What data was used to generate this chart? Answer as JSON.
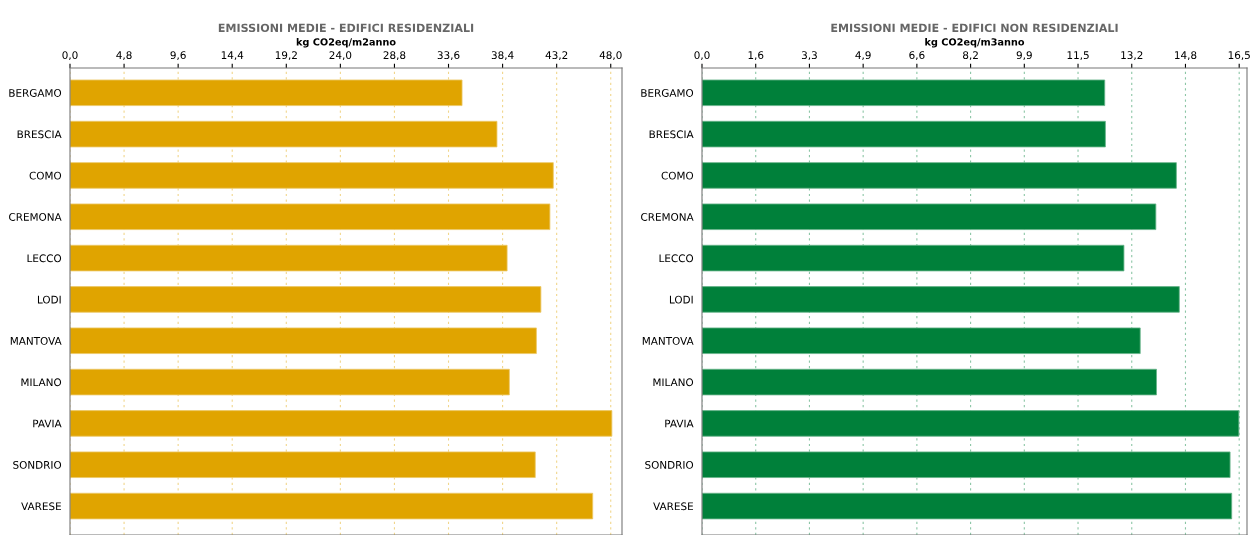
{
  "chart_data": [
    {
      "type": "bar",
      "orientation": "horizontal",
      "title": "EMISSIONI MEDIE - EDIFICI RESIDENZIALI",
      "xlabel": "kg CO2eq/m2anno",
      "categories": [
        "BERGAMO",
        "BRESCIA",
        "COMO",
        "CREMONA",
        "LECCO",
        "LODI",
        "MANTOVA",
        "MILANO",
        "PAVIA",
        "SONDRIO",
        "VARESE"
      ],
      "values": [
        34.8,
        37.9,
        42.9,
        42.6,
        38.8,
        41.8,
        41.4,
        39.0,
        48.1,
        41.3,
        46.4
      ],
      "color": "#e0a400",
      "xlim": [
        0,
        49.0
      ],
      "xticks": [
        {
          "value": 0,
          "label": "0,0"
        },
        {
          "value": 4.8,
          "label": "4,8"
        },
        {
          "value": 9.6,
          "label": "9,6"
        },
        {
          "value": 14.4,
          "label": "14,4"
        },
        {
          "value": 19.2,
          "label": "19,2"
        },
        {
          "value": 24.0,
          "label": "24,0"
        },
        {
          "value": 28.8,
          "label": "28,8"
        },
        {
          "value": 33.6,
          "label": "33,6"
        },
        {
          "value": 38.4,
          "label": "38,4"
        },
        {
          "value": 43.2,
          "label": "43,2"
        },
        {
          "value": 48.0,
          "label": "48,0"
        }
      ],
      "grid": "x"
    },
    {
      "type": "bar",
      "orientation": "horizontal",
      "title": "EMISSIONI MEDIE - EDIFICI NON RESIDENZIALI",
      "xlabel": "kg CO2eq/m3anno",
      "categories": [
        "BERGAMO",
        "BRESCIA",
        "COMO",
        "CREMONA",
        "LECCO",
        "LODI",
        "MANTOVA",
        "MILANO",
        "PAVIA",
        "SONDRIO",
        "VARESE"
      ],
      "values": [
        12.37,
        12.39,
        14.57,
        13.94,
        12.96,
        14.66,
        13.46,
        13.96,
        16.49,
        16.22,
        16.27
      ],
      "color": "#00803a",
      "xlim": [
        0,
        16.74
      ],
      "xticks": [
        {
          "value": 0,
          "label": "0,0"
        },
        {
          "value": 1.65,
          "label": "1,6"
        },
        {
          "value": 3.3,
          "label": "3,3"
        },
        {
          "value": 4.95,
          "label": "4,9"
        },
        {
          "value": 6.6,
          "label": "6,6"
        },
        {
          "value": 8.25,
          "label": "8,2"
        },
        {
          "value": 9.9,
          "label": "9,9"
        },
        {
          "value": 11.55,
          "label": "11,5"
        },
        {
          "value": 13.2,
          "label": "13,2"
        },
        {
          "value": 14.85,
          "label": "14,8"
        },
        {
          "value": 16.5,
          "label": "16,5"
        }
      ],
      "grid": "x"
    }
  ]
}
